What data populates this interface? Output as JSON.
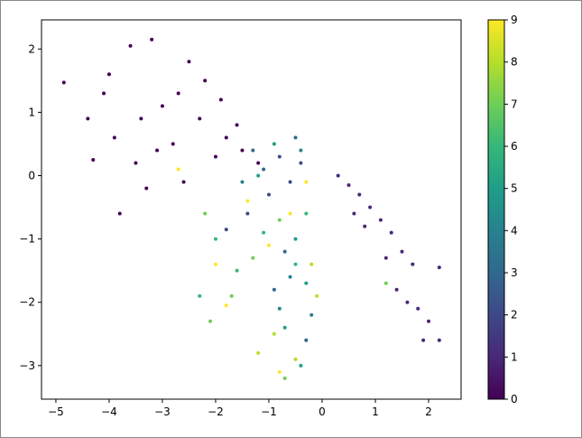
{
  "chart_data": {
    "type": "scatter",
    "colormap": "viridis",
    "x": [
      -4.85,
      -4.4,
      -4.1,
      -3.9,
      -3.6,
      -3.2,
      -3.5,
      -3.0,
      -2.8,
      -2.5,
      -2.3,
      -2.0,
      -1.8,
      -1.5,
      -1.2,
      -3.8,
      -3.3,
      -2.6,
      -2.2,
      -1.9,
      -4.3,
      -3.1,
      -2.7,
      -1.6,
      -4.0,
      -3.4,
      0.3,
      0.5,
      0.7,
      0.9,
      1.1,
      1.3,
      1.5,
      1.7,
      1.4,
      1.8,
      2.0,
      1.9,
      2.2,
      1.2,
      0.8,
      2.2,
      1.6,
      0.6,
      -1.8,
      -1.4,
      -1.0,
      -0.6,
      -0.8,
      -0.4,
      -1.1,
      -0.5,
      -0.7,
      -0.9,
      -0.3,
      -1.3,
      -1.5,
      -0.6,
      -0.2,
      -0.8,
      -0.4,
      -1.2,
      -0.9,
      -0.5,
      -0.7,
      -0.3,
      -0.4,
      -2.0,
      -1.6,
      -1.1,
      -0.3,
      -2.3,
      -0.5,
      -2.2,
      -1.7,
      -1.3,
      -0.8,
      1.2,
      -2.1,
      -0.7,
      -0.2,
      -0.9,
      -1.2,
      -0.5,
      -0.1,
      -1.0,
      -0.6,
      -0.3,
      -1.4,
      -2.0,
      -0.8,
      -1.8,
      -2.7
    ],
    "y": [
      1.47,
      0.9,
      1.3,
      0.6,
      2.05,
      2.15,
      0.2,
      1.1,
      0.5,
      1.8,
      0.9,
      0.3,
      0.6,
      0.4,
      0.2,
      -0.6,
      -0.2,
      -0.1,
      1.5,
      1.2,
      0.25,
      0.4,
      1.3,
      0.8,
      1.6,
      0.9,
      0,
      -0.15,
      -0.3,
      -0.5,
      -0.7,
      -0.9,
      -1.2,
      -1.4,
      -1.8,
      -2.1,
      -2.3,
      -2.6,
      -2.6,
      -1.3,
      -0.8,
      -1.45,
      -2.0,
      -0.6,
      -0.85,
      -0.6,
      -0.3,
      -0.1,
      0.3,
      0.2,
      0.1,
      0.6,
      -1.2,
      -1.8,
      -2.6,
      0.4,
      -0.1,
      -1.6,
      -2.2,
      -2.1,
      0.4,
      0.0,
      0.5,
      -1.0,
      -2.4,
      -1.7,
      -3.0,
      -1.0,
      -1.5,
      -0.9,
      -0.6,
      -1.9,
      -1.4,
      -0.6,
      -1.9,
      -1.3,
      -0.7,
      -1.7,
      -2.3,
      -3.2,
      -1.4,
      -2.5,
      -2.8,
      -2.9,
      -1.9,
      -1.1,
      -0.6,
      -0.1,
      -0.4,
      -1.4,
      -3.1,
      -2.05,
      0.1
    ],
    "c": [
      0,
      0,
      0,
      0,
      0,
      0,
      0,
      0,
      0,
      0,
      0,
      0,
      0,
      0,
      0,
      0,
      0,
      0,
      0,
      0,
      0,
      0,
      0,
      0,
      0,
      0,
      1,
      1,
      1,
      1,
      1,
      1,
      1,
      1,
      1,
      1,
      1,
      1,
      1,
      1,
      1,
      1,
      1,
      1,
      2,
      2,
      2,
      2,
      2,
      2,
      3,
      3,
      3,
      3,
      3,
      3,
      4,
      4,
      4,
      4,
      4,
      5,
      5,
      5,
      5,
      5,
      5,
      6,
      6,
      6,
      6,
      6,
      6,
      7,
      7,
      7,
      7,
      7,
      7,
      7,
      8,
      8,
      8,
      8,
      8,
      9,
      9,
      9,
      9,
      9,
      9,
      9,
      9
    ],
    "xlim": [
      -5.27,
      2.61
    ],
    "ylim": [
      -3.53,
      2.46
    ],
    "xticks": [
      {
        "value": -5,
        "label": "−5"
      },
      {
        "value": -4,
        "label": "−4"
      },
      {
        "value": -3,
        "label": "−3"
      },
      {
        "value": -2,
        "label": "−2"
      },
      {
        "value": -1,
        "label": "−1"
      },
      0,
      1,
      2
    ],
    "yticks": [
      {
        "value": -3,
        "label": "−3"
      },
      {
        "value": -2,
        "label": "−2"
      },
      {
        "value": -1,
        "label": "−1"
      },
      0,
      1,
      2
    ],
    "clim": [
      0,
      9
    ],
    "cticks": [
      0,
      1,
      2,
      3,
      4,
      5,
      6,
      7,
      8,
      9
    ]
  }
}
